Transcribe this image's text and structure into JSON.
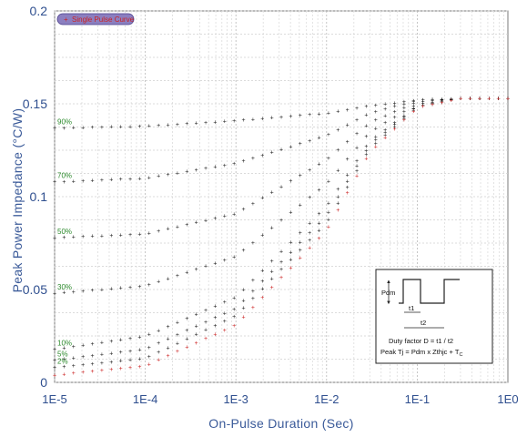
{
  "chart_data": {
    "type": "scatter",
    "xscale": "log",
    "xlim": [
      1e-05,
      1
    ],
    "ylim": [
      0,
      0.2
    ],
    "xlabel": "On-Pulse Duration (Sec)",
    "ylabel": "Peak Power Impedance (°C/W)",
    "x_tick_labels": [
      "1E-5",
      "1E-4",
      "1E-3",
      "1E-2",
      "1E-1",
      "1E0"
    ],
    "y_tick_labels": [
      "0",
      "0.05",
      "0.1",
      "0.15",
      "0.2"
    ],
    "y_ticks": [
      0,
      0.05,
      0.1,
      0.15,
      0.2
    ],
    "grid": true,
    "legend": {
      "label": "Single Pulse Curve",
      "placement": "top-left"
    },
    "colors": {
      "single_pulse": "#cc2222",
      "duty_curves": "#1a1a1a",
      "duty_labels": "#2c8a2c",
      "axis_text": "#2f4f8f",
      "legend_bg": "#8b7fc0"
    },
    "series": [
      {
        "label": "90%",
        "name": "90%",
        "x": [
          1e-05,
          0.0001,
          0.001,
          0.01,
          0.03,
          0.1,
          0.3,
          1
        ],
        "values": [
          0.137,
          0.138,
          0.141,
          0.145,
          0.149,
          0.152,
          0.153,
          0.153
        ]
      },
      {
        "label": "70%",
        "name": "70%",
        "x": [
          1e-05,
          0.0001,
          0.001,
          0.01,
          0.03,
          0.1,
          0.3,
          1
        ],
        "values": [
          0.108,
          0.11,
          0.118,
          0.133,
          0.145,
          0.152,
          0.153,
          0.153
        ]
      },
      {
        "label": "50%",
        "name": "50%",
        "x": [
          1e-05,
          0.0001,
          0.001,
          0.01,
          0.03,
          0.1,
          0.3,
          1
        ],
        "values": [
          0.078,
          0.08,
          0.091,
          0.12,
          0.14,
          0.151,
          0.153,
          0.153
        ]
      },
      {
        "label": "30%",
        "name": "30%",
        "x": [
          1e-05,
          0.0001,
          0.001,
          0.01,
          0.03,
          0.1,
          0.3,
          1
        ],
        "values": [
          0.048,
          0.052,
          0.068,
          0.107,
          0.135,
          0.15,
          0.153,
          0.153
        ]
      },
      {
        "label": "10%",
        "name": "10%",
        "x": [
          1e-05,
          0.0001,
          0.001,
          0.01,
          0.03,
          0.1,
          0.3,
          1
        ],
        "values": [
          0.018,
          0.025,
          0.046,
          0.095,
          0.13,
          0.149,
          0.153,
          0.153
        ]
      },
      {
        "label": "5%",
        "name": "5%",
        "x": [
          1e-05,
          0.0001,
          0.001,
          0.01,
          0.03,
          0.1,
          0.3,
          1
        ],
        "values": [
          0.012,
          0.018,
          0.04,
          0.09,
          0.128,
          0.149,
          0.153,
          0.153
        ]
      },
      {
        "label": "2%",
        "name": "2%",
        "x": [
          1e-05,
          0.0001,
          0.001,
          0.01,
          0.03,
          0.1,
          0.3,
          1
        ],
        "values": [
          0.008,
          0.013,
          0.036,
          0.086,
          0.126,
          0.148,
          0.153,
          0.153
        ]
      },
      {
        "label": "",
        "name": "Single Pulse Curve",
        "x": [
          1e-05,
          0.0001,
          0.001,
          0.01,
          0.03,
          0.1,
          0.3,
          1
        ],
        "values": [
          0.004,
          0.009,
          0.031,
          0.082,
          0.124,
          0.148,
          0.153,
          0.153
        ]
      }
    ]
  },
  "inset": {
    "pdm_label": "Pdm",
    "t1_label": "t1",
    "t2_label": "t2",
    "duty_text": "Duty factor D = t1 / t2",
    "peak_text_main": "Peak Tj = Pdm x Zthjc + T",
    "peak_text_sub": "C"
  }
}
